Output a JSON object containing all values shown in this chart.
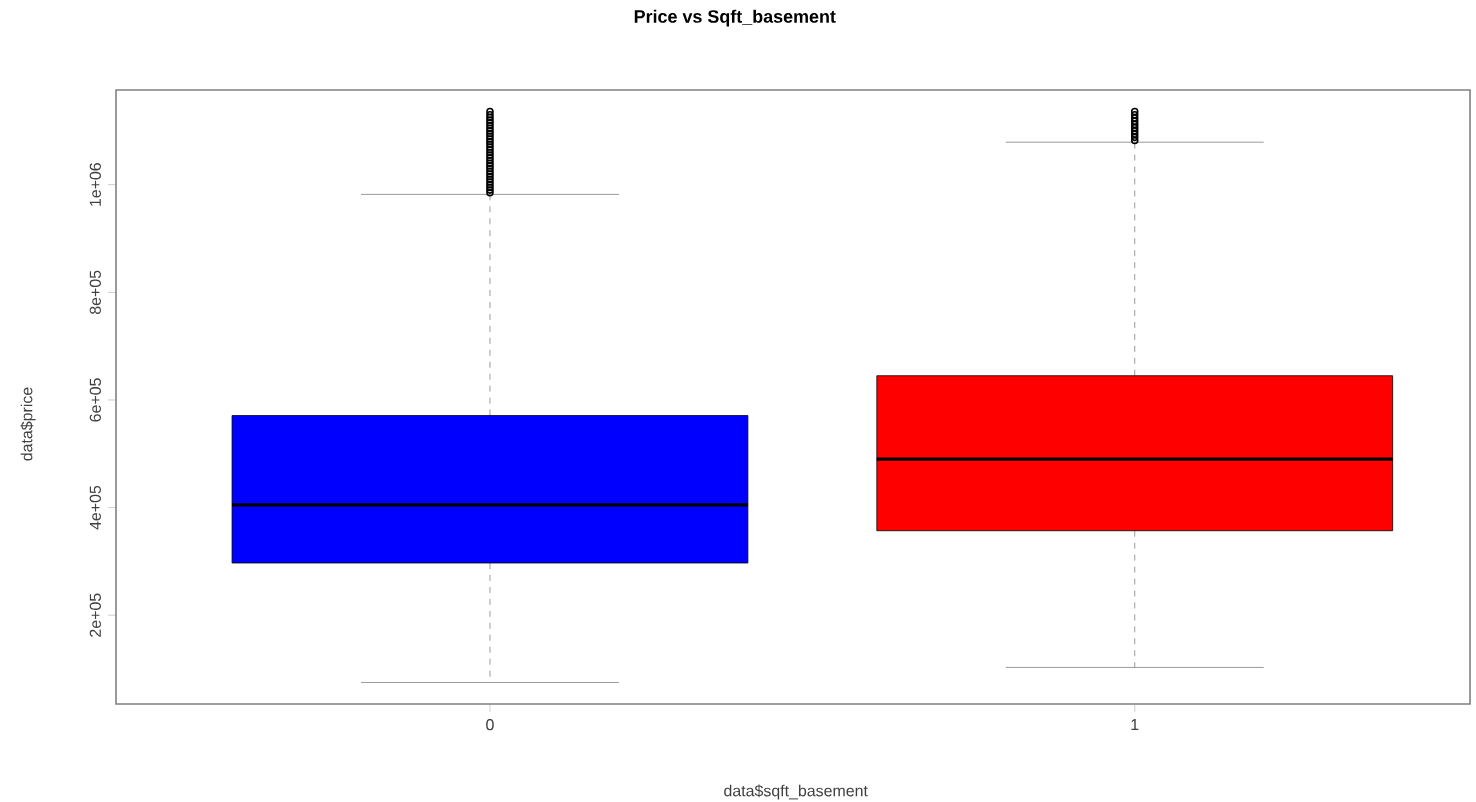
{
  "chart_data": {
    "type": "box",
    "title": "Price vs Sqft_basement",
    "xlabel": "data$sqft_basement",
    "ylabel": "data$price",
    "categories": [
      "0",
      "1"
    ],
    "colors": [
      "#0000ff",
      "#ff0000"
    ],
    "boxes": [
      {
        "low": 75000,
        "q1": 297000,
        "median": 405000,
        "q3": 571000,
        "high": 982000,
        "outliers": [
          985000,
          990000,
          995000,
          1000000,
          1005000,
          1010000,
          1015000,
          1020000,
          1025000,
          1030000,
          1035000,
          1040000,
          1045000,
          1050000,
          1055000,
          1060000,
          1065000,
          1070000,
          1075000,
          1080000,
          1085000,
          1090000,
          1095000,
          1100000,
          1105000,
          1110000,
          1115000,
          1120000,
          1125000,
          1130000,
          1136000
        ]
      },
      {
        "low": 103000,
        "q1": 357000,
        "median": 490000,
        "q3": 645000,
        "high": 1079000,
        "outliers": [
          1082000,
          1088000,
          1094000,
          1100000,
          1106000,
          1112000,
          1118000,
          1124000,
          1130000,
          1136000
        ]
      }
    ],
    "ylim": [
      35000,
      1176000
    ],
    "yticks": [
      {
        "value": 200000,
        "label": "2e+05"
      },
      {
        "value": 400000,
        "label": "4e+05"
      },
      {
        "value": 600000,
        "label": "6e+05"
      },
      {
        "value": 800000,
        "label": "8e+05"
      },
      {
        "value": 1000000,
        "label": "1e+06"
      }
    ]
  }
}
